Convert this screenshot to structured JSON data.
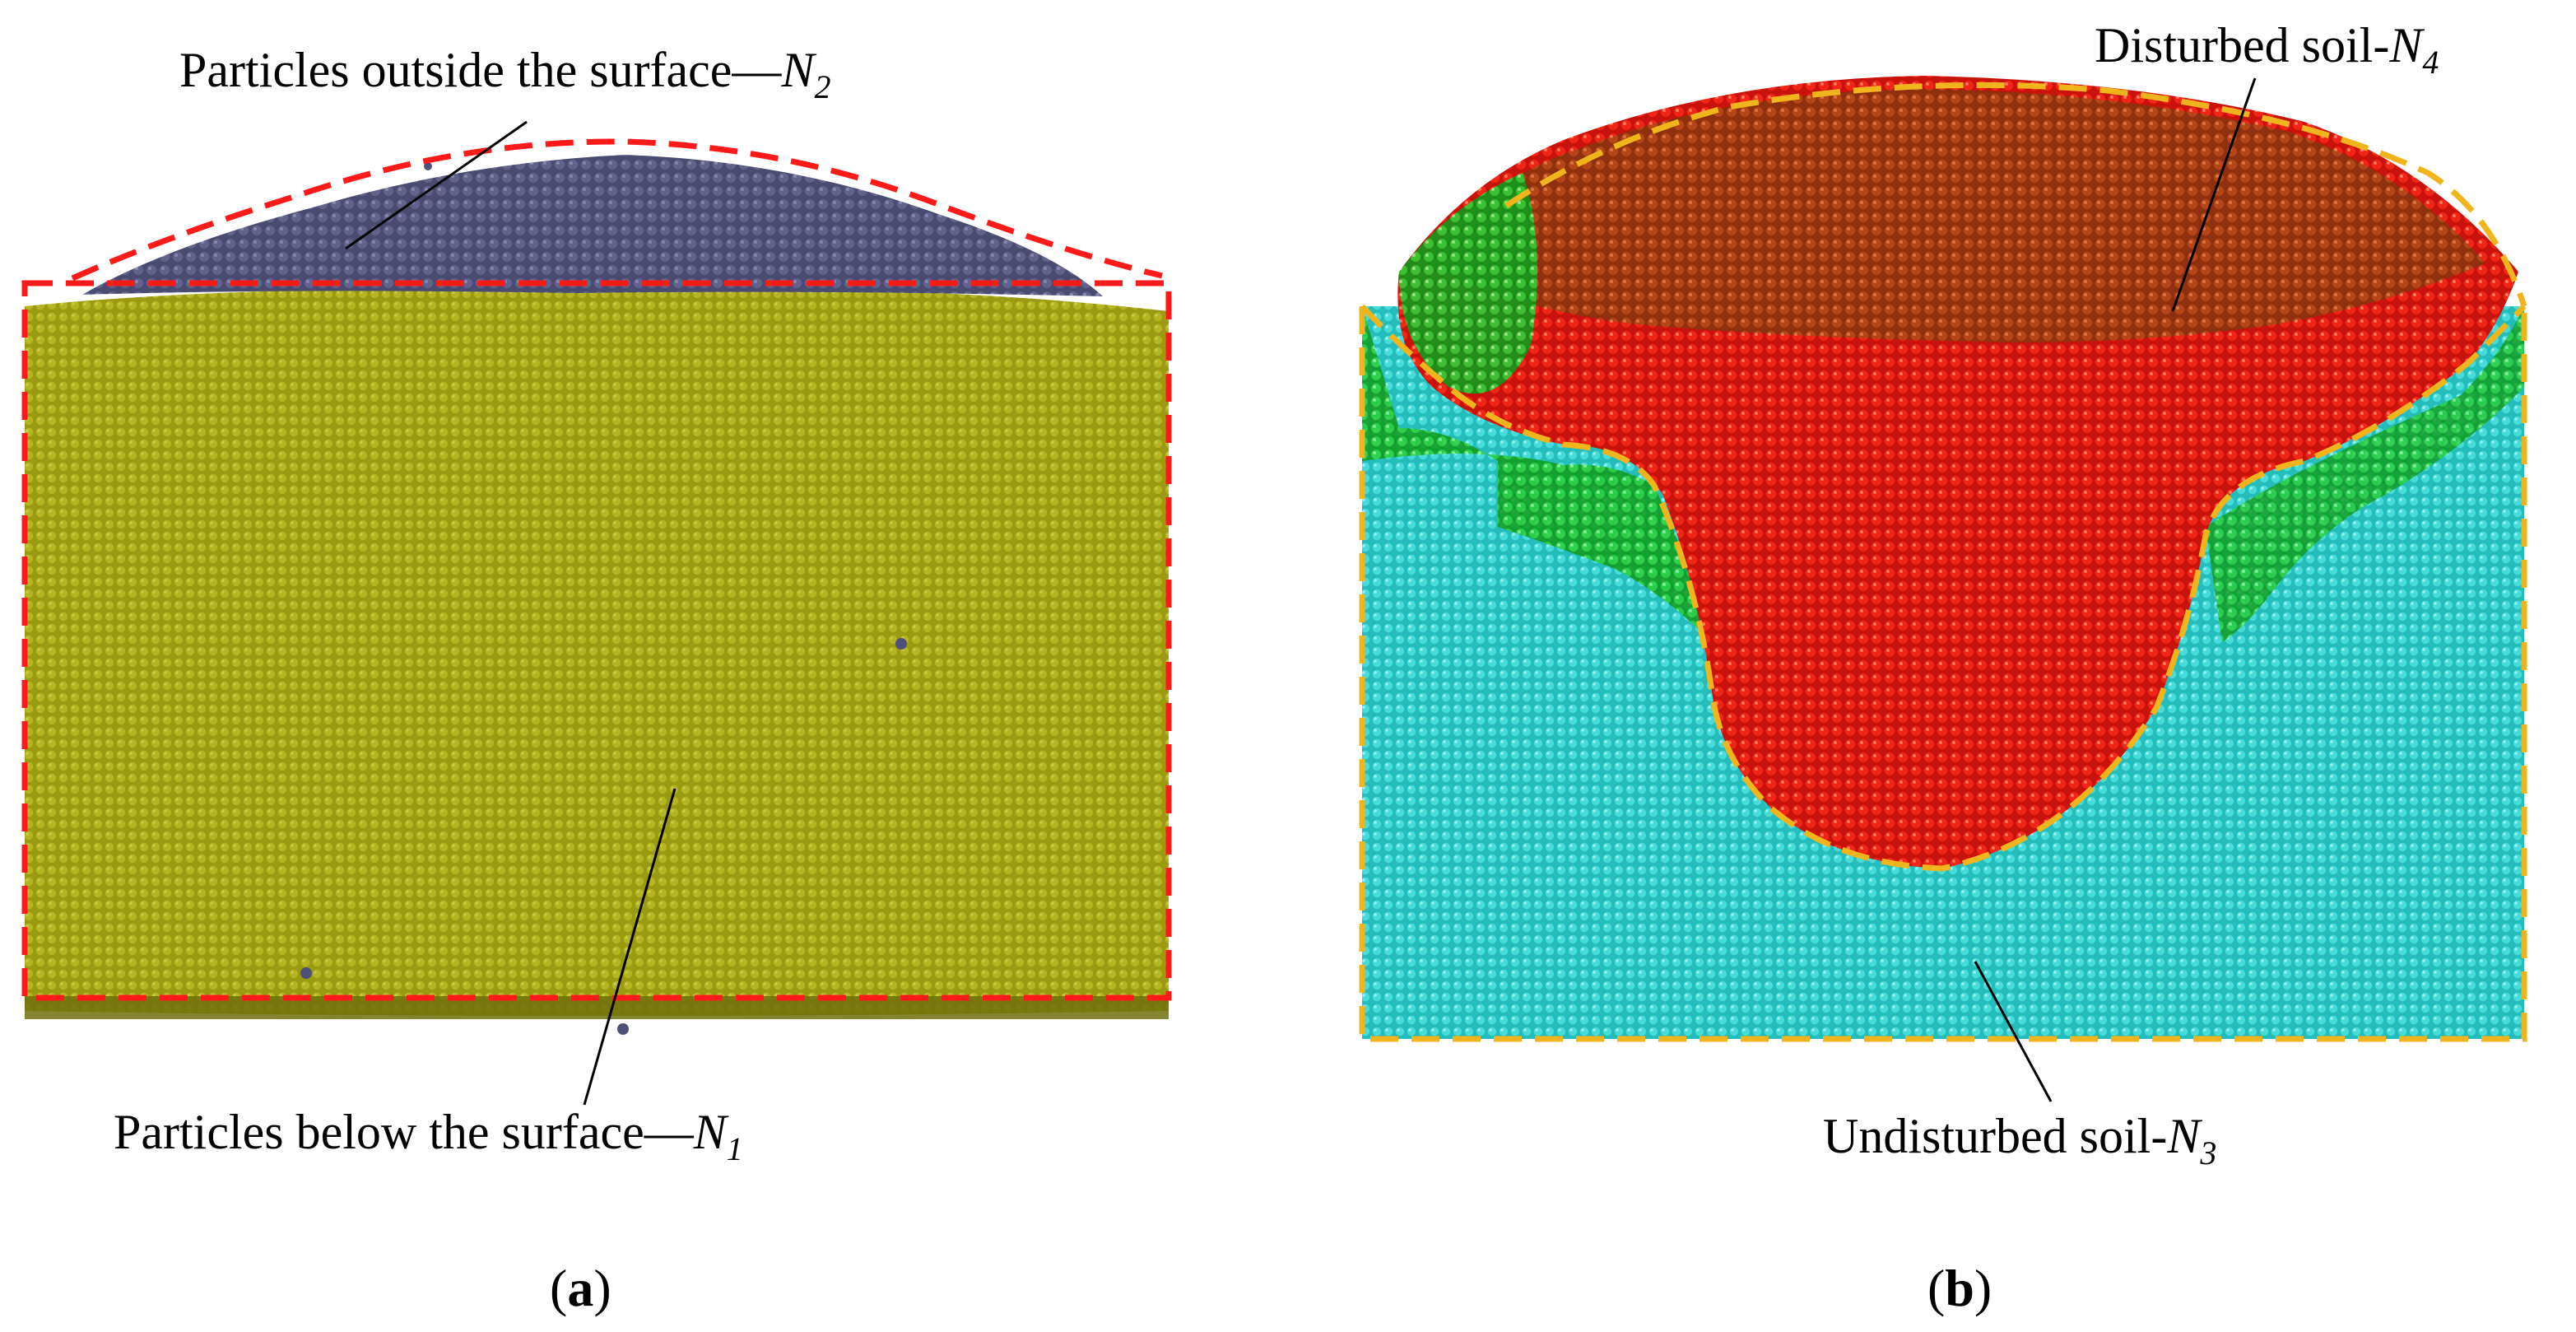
{
  "panels": [
    {
      "id": "a",
      "caption_open": "(",
      "caption_letter": "a",
      "caption_close": ")",
      "labels": {
        "top": {
          "text": "Particles outside the surface—",
          "symbol": "N",
          "subscript": "2"
        },
        "bottom": {
          "text": "Particles below the surface—",
          "symbol": "N",
          "subscript": "1"
        }
      },
      "colors": {
        "surface_particles": "#57587e",
        "bulk_particles": "#9e9f12",
        "outline": "#ff1a1a"
      }
    },
    {
      "id": "b",
      "caption_open": "(",
      "caption_letter": "b",
      "caption_close": ")",
      "labels": {
        "top": {
          "text": "Disturbed soil-",
          "symbol": "N",
          "subscript": "4"
        },
        "bottom": {
          "text": "Undisturbed soil-",
          "symbol": "N",
          "subscript": "3"
        }
      },
      "colors": {
        "disturbed_red": "#ee1d10",
        "disturbed_green": "#1cc82a",
        "undisturbed_cyan": "#36d8d6",
        "outline": "#f0b41c"
      }
    }
  ]
}
